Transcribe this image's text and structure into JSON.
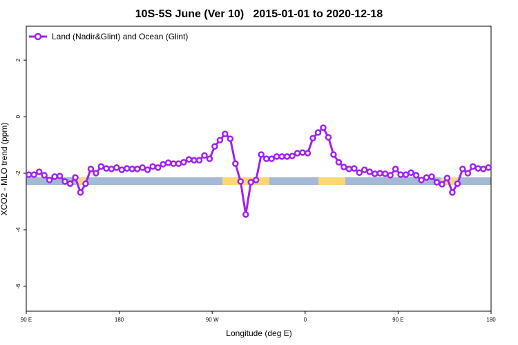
{
  "chart_data": {
    "type": "line",
    "title": "10S-5S June (Ver 10)   2015-01-01 to 2020-12-18",
    "x_label": "Longitude (deg E)",
    "y_label": "XCO2 - MLO trend (ppm)",
    "xlim": [
      90,
      540
    ],
    "ylim": [
      -6.88,
      3.2
    ],
    "xticks": [
      {
        "value": 90,
        "label": "90 E"
      },
      180,
      {
        "value": 270,
        "label": "90 W"
      },
      {
        "value": 360,
        "label": "0"
      },
      {
        "value": 450,
        "label": "90 E"
      },
      {
        "value": 540,
        "label": "180"
      }
    ],
    "yticks": [
      -6,
      -4,
      -2,
      0,
      2
    ],
    "legend": "top-left",
    "x": [
      92.5,
      97.5,
      102.5,
      107.5,
      112.5,
      117.5,
      122.5,
      127.5,
      132.5,
      137.5,
      142.5,
      147.5,
      152.5,
      157.5,
      162.5,
      167.5,
      172.5,
      177.5,
      182.5,
      187.5,
      192.5,
      197.5,
      202.5,
      207.5,
      212.5,
      217.5,
      222.5,
      227.5,
      232.5,
      237.5,
      242.5,
      247.5,
      252.5,
      257.5,
      262.5,
      267.5,
      272.5,
      277.5,
      282.5,
      287.5,
      292.5,
      297.5,
      302.5,
      307.5,
      312.5,
      317.5,
      322.5,
      327.5,
      332.5,
      337.5,
      342.5,
      347.5,
      352.5,
      357.5,
      362.5,
      367.5,
      372.5,
      377.5,
      382.5,
      387.5,
      392.5,
      397.5,
      402.5,
      407.5,
      412.5,
      417.5,
      422.5,
      427.5,
      432.5,
      437.5,
      442.5,
      447.5,
      452.5,
      457.5,
      462.5,
      467.5,
      472.5,
      477.5,
      482.5,
      487.5,
      492.5,
      497.5,
      502.5,
      507.5,
      512.5,
      517.5,
      522.5,
      527.5,
      532.5,
      537.5
    ],
    "series": [
      {
        "name": "Land (Nadir&Glint) and Ocean (Glint)",
        "color": "#a020f0",
        "values": [
          -2.05,
          -2.05,
          -1.95,
          -2.07,
          -2.24,
          -2.12,
          -2.1,
          -2.29,
          -2.37,
          -2.15,
          -2.68,
          -2.37,
          -1.85,
          -2.0,
          -1.76,
          -1.83,
          -1.85,
          -1.8,
          -1.88,
          -1.83,
          -1.85,
          -1.85,
          -1.8,
          -1.88,
          -1.76,
          -1.8,
          -1.68,
          -1.63,
          -1.66,
          -1.66,
          -1.61,
          -1.51,
          -1.54,
          -1.54,
          -1.37,
          -1.49,
          -1.05,
          -0.83,
          -0.61,
          -0.78,
          -1.66,
          -2.29,
          -3.46,
          -2.32,
          -2.24,
          -1.34,
          -1.49,
          -1.49,
          -1.41,
          -1.41,
          -1.41,
          -1.39,
          -1.29,
          -1.27,
          -1.29,
          -0.76,
          -0.56,
          -0.39,
          -0.73,
          -1.34,
          -1.61,
          -1.78,
          -1.85,
          -1.83,
          -1.98,
          -1.88,
          -1.95,
          -2.02,
          -2.0,
          -2.02,
          -2.07,
          -1.85,
          -2.05,
          -2.05,
          -1.98,
          -2.07,
          -2.24,
          -2.15,
          -2.12,
          -2.32,
          -2.39,
          -2.17,
          -2.68,
          -2.37,
          -1.85,
          -2.0,
          -1.76,
          -1.83,
          -1.85,
          -1.8
        ]
      }
    ]
  }
}
